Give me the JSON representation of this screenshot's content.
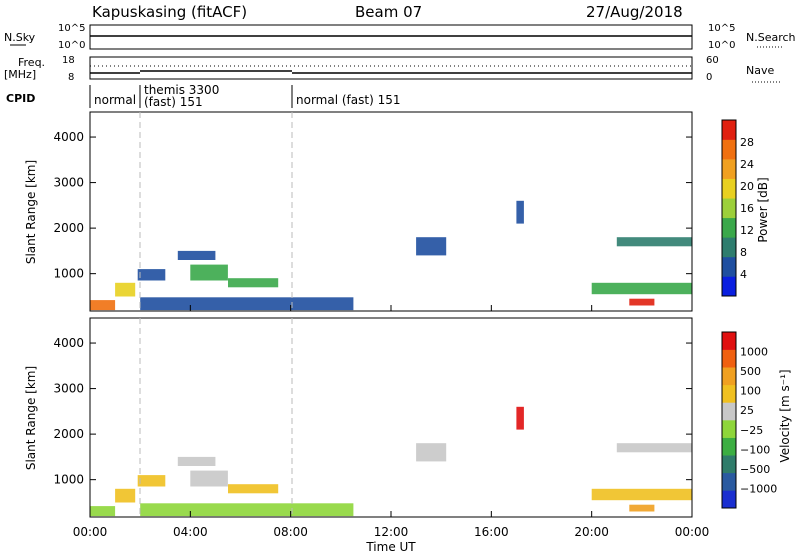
{
  "header": {
    "station": "Kapuskasing (fitACF)",
    "beam": "Beam 07",
    "date": "27/Aug/2018"
  },
  "summary": {
    "nsky": {
      "label": "N.Sky",
      "top": "10^5",
      "bottom": "10^0"
    },
    "nsearch": {
      "label": "N.Search",
      "top": "10^5",
      "bottom": "10^0"
    },
    "freq": {
      "label_line1": "Freq.",
      "label_line2": "[MHz]",
      "top": "18",
      "bottom": "8"
    },
    "nave": {
      "label": "Nave",
      "top": "60",
      "bottom": "0"
    },
    "cpid": {
      "label": "CPID",
      "modes": [
        {
          "name": "normal",
          "start_h": 0.0
        },
        {
          "name": "themis 3300",
          "sub": "(fast) 151",
          "start_h": 2.0
        },
        {
          "name": "normal (fast) 151",
          "start_h": 8.0
        }
      ]
    }
  },
  "colorbars": {
    "power": {
      "label": "Power [dB]",
      "ticks": [
        "4",
        "8",
        "12",
        "16",
        "20",
        "24",
        "28"
      ],
      "colors": [
        "#0a1fe0",
        "#1f4fa0",
        "#2e7d6e",
        "#3aa84a",
        "#9ccf3a",
        "#e8d020",
        "#f0a020",
        "#f07010",
        "#e02010"
      ]
    },
    "velocity": {
      "label": "Velocity [m s⁻¹]",
      "ticks": [
        "1000",
        "500",
        "100",
        "25",
        "−25",
        "−100",
        "−500",
        "−1000"
      ],
      "colors": [
        "#1a2fd0",
        "#2a5aa0",
        "#2f7c6a",
        "#3cae42",
        "#8ed63a",
        "#c8c8c8",
        "#f0c020",
        "#f0a020",
        "#f06010",
        "#e01010"
      ]
    }
  },
  "axes": {
    "ylabel": "Slant Range [km]",
    "xlabel": "Time UT",
    "yticks": [
      1000,
      2000,
      3000,
      4000
    ],
    "xticks": [
      "00:00",
      "04:00",
      "08:00",
      "12:00",
      "16:00",
      "20:00",
      "00:00"
    ]
  },
  "chart_data": [
    {
      "type": "heatmap",
      "title": "Power",
      "xlabel": "Time UT",
      "ylabel": "Slant Range [km]",
      "xlim_h": [
        0,
        24
      ],
      "ylim_km": [
        180,
        4550
      ],
      "regions": [
        {
          "t0": 0.0,
          "t1": 1.0,
          "r0": 200,
          "r1": 420,
          "level": 7
        },
        {
          "t0": 1.0,
          "t1": 1.8,
          "r0": 500,
          "r1": 800,
          "level": 5
        },
        {
          "t0": 1.9,
          "t1": 3.0,
          "r0": 850,
          "r1": 1100,
          "level": 1
        },
        {
          "t0": 2.0,
          "t1": 10.5,
          "r0": 200,
          "r1": 480,
          "level": 1
        },
        {
          "t0": 4.0,
          "t1": 5.5,
          "r0": 850,
          "r1": 1200,
          "level": 3
        },
        {
          "t0": 5.5,
          "t1": 7.5,
          "r0": 700,
          "r1": 900,
          "level": 3
        },
        {
          "t0": 3.5,
          "t1": 5.0,
          "r0": 1300,
          "r1": 1500,
          "level": 1
        },
        {
          "t0": 13.0,
          "t1": 14.2,
          "r0": 1400,
          "r1": 1800,
          "level": 1
        },
        {
          "t0": 17.0,
          "t1": 17.3,
          "r0": 2100,
          "r1": 2600,
          "level": 1
        },
        {
          "t0": 21.0,
          "t1": 24.0,
          "r0": 1600,
          "r1": 1800,
          "level": 2
        },
        {
          "t0": 20.0,
          "t1": 24.0,
          "r0": 550,
          "r1": 800,
          "level": 3
        },
        {
          "t0": 21.5,
          "t1": 22.5,
          "r0": 300,
          "r1": 450,
          "level": 8
        }
      ]
    },
    {
      "type": "heatmap",
      "title": "Velocity",
      "xlabel": "Time UT",
      "ylabel": "Slant Range [km]",
      "xlim_h": [
        0,
        24
      ],
      "ylim_km": [
        180,
        4550
      ],
      "regions": [
        {
          "t0": 0.0,
          "t1": 1.0,
          "r0": 200,
          "r1": 420,
          "level": 4
        },
        {
          "t0": 1.0,
          "t1": 1.8,
          "r0": 500,
          "r1": 800,
          "level": 6
        },
        {
          "t0": 1.9,
          "t1": 3.0,
          "r0": 850,
          "r1": 1100,
          "level": 6
        },
        {
          "t0": 2.0,
          "t1": 10.5,
          "r0": 200,
          "r1": 480,
          "level": 4
        },
        {
          "t0": 4.0,
          "t1": 5.5,
          "r0": 850,
          "r1": 1200,
          "level": 5
        },
        {
          "t0": 5.5,
          "t1": 7.5,
          "r0": 700,
          "r1": 900,
          "level": 6
        },
        {
          "t0": 3.5,
          "t1": 5.0,
          "r0": 1300,
          "r1": 1500,
          "level": 5
        },
        {
          "t0": 13.0,
          "t1": 14.2,
          "r0": 1400,
          "r1": 1800,
          "level": 5
        },
        {
          "t0": 17.0,
          "t1": 17.3,
          "r0": 2100,
          "r1": 2600,
          "level": 9
        },
        {
          "t0": 21.0,
          "t1": 24.0,
          "r0": 1600,
          "r1": 1800,
          "level": 5
        },
        {
          "t0": 20.0,
          "t1": 24.0,
          "r0": 550,
          "r1": 800,
          "level": 6
        },
        {
          "t0": 21.5,
          "t1": 22.5,
          "r0": 300,
          "r1": 450,
          "level": 7
        }
      ]
    }
  ]
}
